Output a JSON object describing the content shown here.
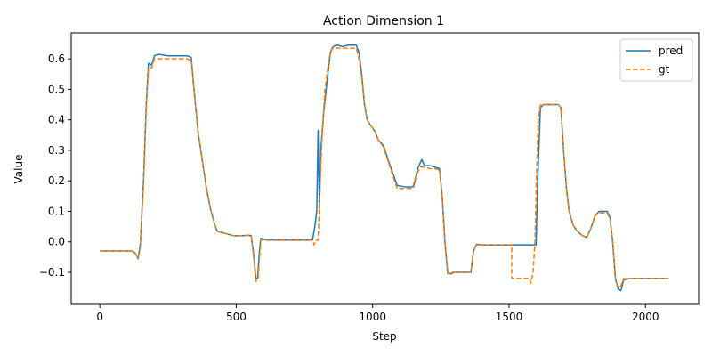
{
  "chart_data": {
    "type": "line",
    "title": "Action Dimension 1",
    "xlabel": "Step",
    "ylabel": "Value",
    "xlim": [
      -105,
      2195
    ],
    "ylim": [
      -0.205,
      0.685
    ],
    "xticks": [
      0,
      500,
      1000,
      1500,
      2000
    ],
    "xtick_labels": [
      "0",
      "500",
      "1000",
      "1500",
      "2000"
    ],
    "yticks": [
      -0.1,
      0.0,
      0.1,
      0.2,
      0.3,
      0.4,
      0.5,
      0.6
    ],
    "ytick_labels": [
      "−0.1",
      "0.0",
      "0.1",
      "0.2",
      "0.3",
      "0.4",
      "0.5",
      "0.6"
    ],
    "grid": false,
    "legend": "top-right",
    "series": [
      {
        "name": "pred",
        "color": "#1f77b4",
        "style": "solid",
        "points": [
          [
            0,
            -0.03
          ],
          [
            120,
            -0.03
          ],
          [
            132,
            -0.04
          ],
          [
            140,
            -0.055
          ],
          [
            148,
            -0.01
          ],
          [
            160,
            0.2
          ],
          [
            170,
            0.45
          ],
          [
            178,
            0.585
          ],
          [
            190,
            0.58
          ],
          [
            200,
            0.61
          ],
          [
            215,
            0.615
          ],
          [
            250,
            0.61
          ],
          [
            280,
            0.61
          ],
          [
            320,
            0.61
          ],
          [
            335,
            0.605
          ],
          [
            345,
            0.5
          ],
          [
            360,
            0.36
          ],
          [
            375,
            0.27
          ],
          [
            390,
            0.18
          ],
          [
            405,
            0.11
          ],
          [
            420,
            0.06
          ],
          [
            430,
            0.035
          ],
          [
            450,
            0.03
          ],
          [
            470,
            0.025
          ],
          [
            490,
            0.02
          ],
          [
            520,
            0.02
          ],
          [
            545,
            0.022
          ],
          [
            555,
            0.02
          ],
          [
            565,
            -0.05
          ],
          [
            572,
            -0.12
          ],
          [
            578,
            -0.12
          ],
          [
            585,
            -0.03
          ],
          [
            590,
            0.012
          ],
          [
            600,
            0.008
          ],
          [
            650,
            0.006
          ],
          [
            700,
            0.006
          ],
          [
            740,
            0.006
          ],
          [
            770,
            0.006
          ],
          [
            780,
            0.008
          ],
          [
            788,
            0.05
          ],
          [
            795,
            0.1
          ],
          [
            800,
            0.365
          ],
          [
            805,
            0.11
          ],
          [
            810,
            0.3
          ],
          [
            820,
            0.42
          ],
          [
            832,
            0.52
          ],
          [
            845,
            0.62
          ],
          [
            855,
            0.64
          ],
          [
            870,
            0.645
          ],
          [
            890,
            0.64
          ],
          [
            910,
            0.645
          ],
          [
            940,
            0.645
          ],
          [
            950,
            0.62
          ],
          [
            960,
            0.55
          ],
          [
            970,
            0.45
          ],
          [
            980,
            0.4
          ],
          [
            990,
            0.385
          ],
          [
            1010,
            0.36
          ],
          [
            1020,
            0.335
          ],
          [
            1040,
            0.315
          ],
          [
            1060,
            0.26
          ],
          [
            1080,
            0.21
          ],
          [
            1090,
            0.185
          ],
          [
            1120,
            0.18
          ],
          [
            1150,
            0.18
          ],
          [
            1165,
            0.24
          ],
          [
            1180,
            0.27
          ],
          [
            1190,
            0.25
          ],
          [
            1210,
            0.25
          ],
          [
            1230,
            0.245
          ],
          [
            1245,
            0.24
          ],
          [
            1255,
            0.15
          ],
          [
            1265,
            0.0
          ],
          [
            1275,
            -0.1
          ],
          [
            1285,
            -0.105
          ],
          [
            1300,
            -0.1
          ],
          [
            1320,
            -0.1
          ],
          [
            1350,
            -0.1
          ],
          [
            1360,
            -0.1
          ],
          [
            1370,
            -0.03
          ],
          [
            1380,
            -0.008
          ],
          [
            1400,
            -0.01
          ],
          [
            1500,
            -0.01
          ],
          [
            1560,
            -0.01
          ],
          [
            1599,
            -0.01
          ],
          [
            1605,
            0.2
          ],
          [
            1615,
            0.44
          ],
          [
            1625,
            0.45
          ],
          [
            1650,
            0.45
          ],
          [
            1680,
            0.45
          ],
          [
            1690,
            0.44
          ],
          [
            1700,
            0.3
          ],
          [
            1710,
            0.18
          ],
          [
            1720,
            0.1
          ],
          [
            1735,
            0.055
          ],
          [
            1750,
            0.035
          ],
          [
            1770,
            0.02
          ],
          [
            1785,
            0.015
          ],
          [
            1800,
            0.045
          ],
          [
            1815,
            0.085
          ],
          [
            1830,
            0.1
          ],
          [
            1860,
            0.1
          ],
          [
            1870,
            0.08
          ],
          [
            1880,
            0.0
          ],
          [
            1890,
            -0.12
          ],
          [
            1900,
            -0.155
          ],
          [
            1910,
            -0.16
          ],
          [
            1920,
            -0.125
          ],
          [
            1940,
            -0.12
          ],
          [
            2000,
            -0.12
          ],
          [
            2080,
            -0.12
          ],
          [
            2085,
            -0.12
          ]
        ]
      },
      {
        "name": "gt",
        "color": "#ff7f0e",
        "style": "dashed",
        "points": [
          [
            0,
            -0.03
          ],
          [
            120,
            -0.03
          ],
          [
            132,
            -0.04
          ],
          [
            140,
            -0.055
          ],
          [
            148,
            -0.02
          ],
          [
            160,
            0.19
          ],
          [
            170,
            0.44
          ],
          [
            178,
            0.57
          ],
          [
            190,
            0.57
          ],
          [
            200,
            0.6
          ],
          [
            250,
            0.6
          ],
          [
            280,
            0.6
          ],
          [
            320,
            0.6
          ],
          [
            335,
            0.595
          ],
          [
            345,
            0.5
          ],
          [
            360,
            0.36
          ],
          [
            375,
            0.27
          ],
          [
            390,
            0.18
          ],
          [
            405,
            0.11
          ],
          [
            420,
            0.06
          ],
          [
            430,
            0.035
          ],
          [
            450,
            0.03
          ],
          [
            470,
            0.025
          ],
          [
            490,
            0.02
          ],
          [
            520,
            0.02
          ],
          [
            545,
            0.022
          ],
          [
            555,
            0.02
          ],
          [
            565,
            -0.06
          ],
          [
            572,
            -0.13
          ],
          [
            580,
            -0.12
          ],
          [
            590,
            0.005
          ],
          [
            600,
            0.005
          ],
          [
            650,
            0.005
          ],
          [
            700,
            0.005
          ],
          [
            740,
            0.005
          ],
          [
            770,
            0.005
          ],
          [
            780,
            0.005
          ],
          [
            785,
            -0.01
          ],
          [
            790,
            0.005
          ],
          [
            800,
            0.005
          ],
          [
            808,
            0.2
          ],
          [
            815,
            0.35
          ],
          [
            825,
            0.5
          ],
          [
            840,
            0.6
          ],
          [
            850,
            0.635
          ],
          [
            900,
            0.635
          ],
          [
            940,
            0.635
          ],
          [
            950,
            0.6
          ],
          [
            960,
            0.54
          ],
          [
            970,
            0.45
          ],
          [
            980,
            0.4
          ],
          [
            990,
            0.385
          ],
          [
            1010,
            0.36
          ],
          [
            1020,
            0.335
          ],
          [
            1040,
            0.31
          ],
          [
            1060,
            0.255
          ],
          [
            1080,
            0.2
          ],
          [
            1090,
            0.175
          ],
          [
            1120,
            0.175
          ],
          [
            1145,
            0.175
          ],
          [
            1160,
            0.22
          ],
          [
            1175,
            0.245
          ],
          [
            1190,
            0.245
          ],
          [
            1210,
            0.24
          ],
          [
            1230,
            0.24
          ],
          [
            1245,
            0.235
          ],
          [
            1255,
            0.14
          ],
          [
            1265,
            -0.005
          ],
          [
            1275,
            -0.105
          ],
          [
            1285,
            -0.1
          ],
          [
            1300,
            -0.1
          ],
          [
            1320,
            -0.1
          ],
          [
            1350,
            -0.1
          ],
          [
            1360,
            -0.1
          ],
          [
            1370,
            -0.03
          ],
          [
            1380,
            -0.01
          ],
          [
            1400,
            -0.01
          ],
          [
            1500,
            -0.01
          ],
          [
            1510,
            -0.01
          ],
          [
            1510,
            -0.12
          ],
          [
            1560,
            -0.12
          ],
          [
            1575,
            -0.12
          ],
          [
            1580,
            -0.135
          ],
          [
            1588,
            -0.1
          ],
          [
            1595,
            0.0
          ],
          [
            1600,
            0.2
          ],
          [
            1607,
            0.4
          ],
          [
            1615,
            0.45
          ],
          [
            1650,
            0.45
          ],
          [
            1680,
            0.45
          ],
          [
            1690,
            0.44
          ],
          [
            1700,
            0.3
          ],
          [
            1710,
            0.18
          ],
          [
            1720,
            0.1
          ],
          [
            1735,
            0.055
          ],
          [
            1750,
            0.035
          ],
          [
            1770,
            0.02
          ],
          [
            1785,
            0.015
          ],
          [
            1800,
            0.045
          ],
          [
            1815,
            0.085
          ],
          [
            1830,
            0.095
          ],
          [
            1860,
            0.095
          ],
          [
            1870,
            0.075
          ],
          [
            1880,
            -0.005
          ],
          [
            1890,
            -0.125
          ],
          [
            1900,
            -0.15
          ],
          [
            1910,
            -0.145
          ],
          [
            1920,
            -0.12
          ],
          [
            1940,
            -0.12
          ],
          [
            2000,
            -0.12
          ],
          [
            2080,
            -0.12
          ],
          [
            2085,
            -0.12
          ]
        ]
      }
    ]
  }
}
